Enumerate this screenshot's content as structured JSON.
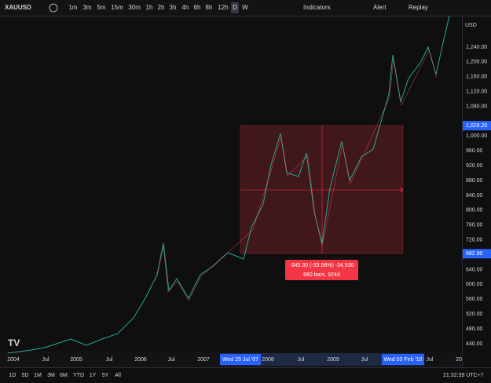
{
  "toolbar": {
    "symbol": "XAUUSD",
    "intervals": [
      "1m",
      "3m",
      "5m",
      "15m",
      "30m",
      "1h",
      "2h",
      "3h",
      "4h",
      "6h",
      "8h",
      "12h",
      "D",
      "W"
    ],
    "active_interval": "D",
    "indicators": "Indicators",
    "alert": "Alert",
    "replay": "Replay"
  },
  "price_axis": {
    "currency": "USD",
    "labels": [
      {
        "value": 1240,
        "label": "1,240.00"
      },
      {
        "value": 1200,
        "label": "1,200.00"
      },
      {
        "value": 1160,
        "label": "1,160.00"
      },
      {
        "value": 1120,
        "label": "1,120.00"
      },
      {
        "value": 1080,
        "label": "1,080.00"
      },
      {
        "value": 1000,
        "label": "1,000.00"
      },
      {
        "value": 960,
        "label": "960.00"
      },
      {
        "value": 920,
        "label": "920.00"
      },
      {
        "value": 880,
        "label": "880.00"
      },
      {
        "value": 840,
        "label": "840.00"
      },
      {
        "value": 800,
        "label": "800.00"
      },
      {
        "value": 760,
        "label": "760.00"
      },
      {
        "value": 720,
        "label": "720.00"
      },
      {
        "value": 640,
        "label": "640.00"
      },
      {
        "value": 600,
        "label": "600.00"
      },
      {
        "value": 560,
        "label": "560.00"
      },
      {
        "value": 520,
        "label": "520.00"
      },
      {
        "value": 480,
        "label": "480.00"
      },
      {
        "value": 440,
        "label": "440.00"
      }
    ],
    "highlights": [
      {
        "value": 1028.2,
        "label": "1,028.20"
      },
      {
        "value": 682.9,
        "label": "682.90"
      }
    ]
  },
  "time_axis": {
    "labels": [
      "2004",
      "Jul",
      "2005",
      "Jul",
      "2006",
      "Jul",
      "2007",
      "2008",
      "Jul",
      "2009",
      "Jul",
      "Jul",
      "20"
    ],
    "range_start": "Wed 25 Jul '07",
    "range_end": "Wed 03 Feb '10"
  },
  "measure": {
    "line1": "-345.30 (-33.58%) -34,530",
    "line2": "660 bars, 924d"
  },
  "bottom_bar": {
    "ranges": [
      "1D",
      "5D",
      "1M",
      "3M",
      "6M",
      "YTD",
      "1Y",
      "5Y",
      "All"
    ],
    "clock": "21:32:39 UTC+7"
  }
}
